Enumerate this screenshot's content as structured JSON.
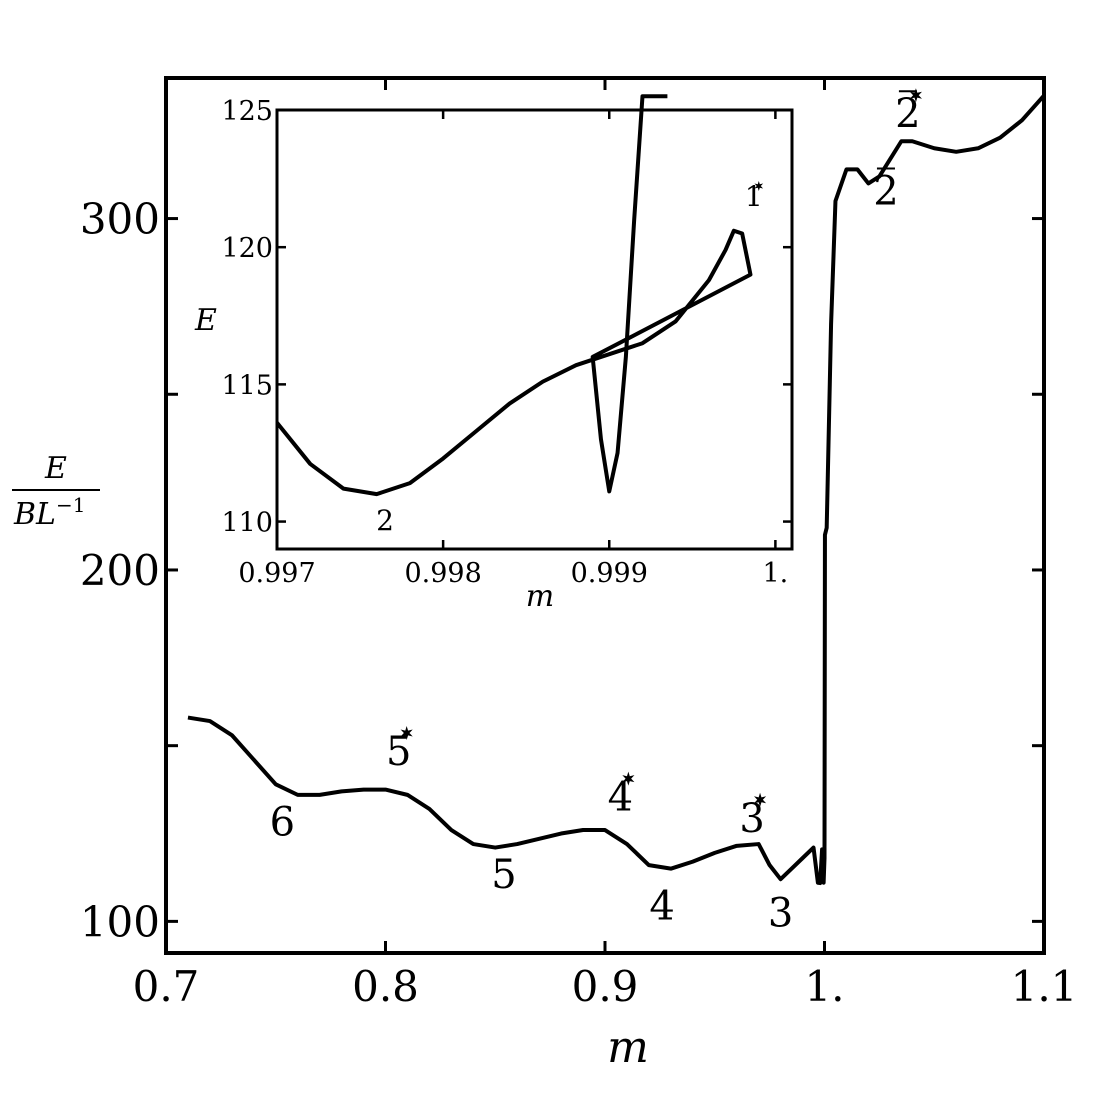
{
  "chart_data": [
    {
      "id": "main",
      "type": "line",
      "xlabel": "m",
      "ylabel": {
        "numerator": "E",
        "denominator": "BL",
        "exponent": "−1"
      },
      "xlim": [
        0.7,
        1.1
      ],
      "ylim": [
        91,
        340
      ],
      "xticks": [
        0.7,
        0.8,
        0.9,
        1.0,
        1.1
      ],
      "xtick_labels": [
        "0.7",
        "0.8",
        "0.9",
        "1.",
        "1.1"
      ],
      "yticks": [
        100,
        150,
        200,
        250,
        300
      ],
      "ytick_labels": [
        "100",
        "",
        "200",
        "",
        "300"
      ],
      "series": [
        {
          "x": [
            0.71,
            0.72,
            0.73,
            0.74,
            0.75,
            0.76,
            0.77,
            0.78,
            0.79,
            0.8,
            0.81,
            0.82,
            0.83,
            0.84,
            0.85,
            0.86,
            0.87,
            0.88,
            0.89,
            0.9,
            0.91,
            0.92,
            0.93,
            0.94,
            0.95,
            0.96,
            0.97,
            0.975,
            0.98,
            0.985,
            0.99,
            0.995,
            0.997,
            0.998,
            0.9989,
            0.9996,
            1.0,
            1.0002,
            1.001,
            1.003,
            1.005,
            1.01,
            1.015,
            1.02,
            1.025,
            1.03,
            1.035,
            1.04,
            1.05,
            1.06,
            1.07,
            1.08,
            1.09,
            1.1
          ],
          "y": [
            158,
            157,
            153,
            146,
            139,
            136,
            136,
            137,
            137.5,
            137.5,
            136,
            132,
            126,
            122,
            121,
            122,
            123.5,
            125,
            126,
            126,
            122,
            116,
            115,
            117,
            119.5,
            121.5,
            122,
            116,
            112,
            115,
            118,
            121,
            111,
            110.9,
            120.5,
            111,
            118,
            210,
            212,
            270,
            305,
            314,
            314,
            310,
            312,
            317,
            322,
            322,
            320,
            319,
            320,
            323,
            328,
            335
          ]
        }
      ],
      "annotations": [
        {
          "text": "6",
          "x": 0.753,
          "y": 124.5
        },
        {
          "text": "5",
          "x": 0.806,
          "y": 144.5,
          "star": true
        },
        {
          "text": "5",
          "x": 0.854,
          "y": 109.5
        },
        {
          "text": "4",
          "x": 0.907,
          "y": 131.5,
          "star": true
        },
        {
          "text": "4",
          "x": 0.926,
          "y": 100.5
        },
        {
          "text": "3",
          "x": 0.967,
          "y": 125.5,
          "star": true
        },
        {
          "text": "3",
          "x": 0.98,
          "y": 98.5
        },
        {
          "text": "2",
          "x": 1.028,
          "y": 304,
          "bar": true
        },
        {
          "text": "2",
          "x": 1.038,
          "y": 326,
          "bar": true,
          "star": true
        }
      ]
    },
    {
      "id": "inset",
      "type": "line",
      "xlabel": "m",
      "ylabel": "E",
      "xlim": [
        0.997,
        1.0001
      ],
      "ylim": [
        109,
        125
      ],
      "xticks": [
        0.997,
        0.998,
        0.999,
        1.0
      ],
      "xtick_labels": [
        "0.997",
        "0.998",
        "0.999",
        "1."
      ],
      "yticks": [
        110,
        115,
        120,
        125
      ],
      "ytick_labels": [
        "110",
        "115",
        "120",
        "125"
      ],
      "series": [
        {
          "x": [
            0.997,
            0.9972,
            0.9974,
            0.9976,
            0.9978,
            0.998,
            0.9982,
            0.9984,
            0.9986,
            0.9988,
            0.999,
            0.9992,
            0.9994,
            0.9996,
            0.9997,
            0.99975,
            0.9998,
            0.99985,
            0.9989,
            0.99895,
            0.999,
            0.99905,
            0.9991,
            0.99915,
            0.9992,
            0.99925,
            0.9993,
            0.99935
          ],
          "y": [
            113.6,
            112.1,
            111.2,
            111.0,
            111.4,
            112.3,
            113.3,
            114.3,
            115.1,
            115.7,
            116.1,
            116.5,
            117.3,
            118.8,
            119.9,
            120.6,
            120.5,
            119.0,
            116.0,
            113.0,
            111.1,
            112.5,
            116.0,
            121.0,
            125.5,
            125.5,
            125.5,
            125.5
          ]
        }
      ],
      "annotations": [
        {
          "text": "2",
          "x": 0.99765,
          "y": 109.7
        },
        {
          "text": "1",
          "x": 0.99987,
          "y": 121.5,
          "star": true
        }
      ]
    }
  ]
}
